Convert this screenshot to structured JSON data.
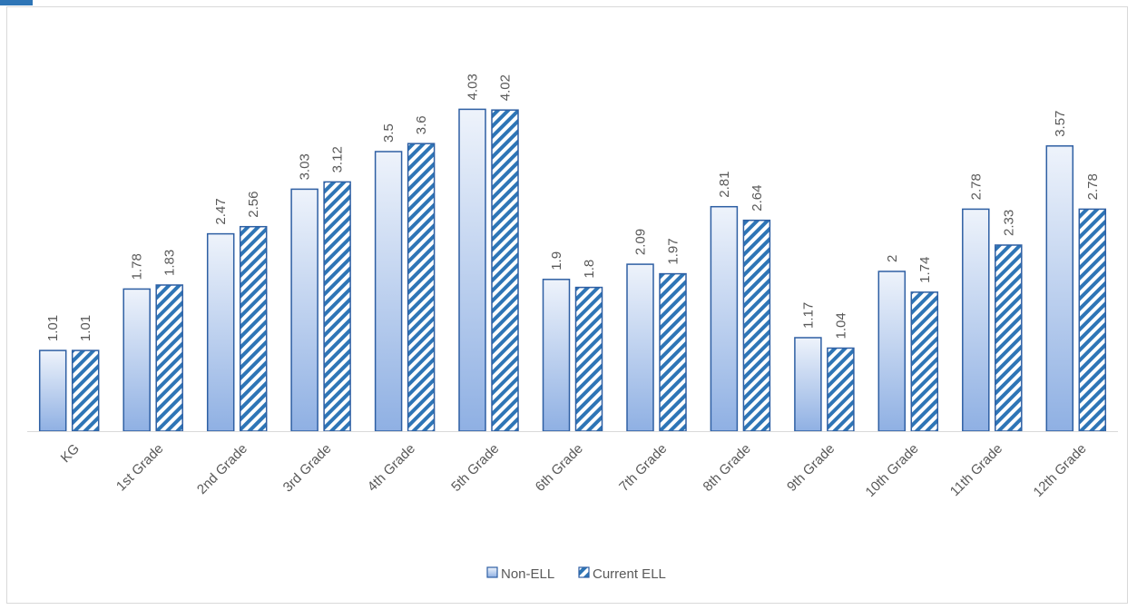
{
  "chart_data": {
    "type": "bar",
    "categories": [
      "KG",
      "1st Grade",
      "2nd Grade",
      "3rd Grade",
      "4th Grade",
      "5th Grade",
      "6th Grade",
      "7th Grade",
      "8th Grade",
      "9th Grade",
      "10th Grade",
      "11th Grade",
      "12th Grade"
    ],
    "series": [
      {
        "name": "Non-ELL",
        "values": [
          1.01,
          1.78,
          2.47,
          3.03,
          3.5,
          4.03,
          1.9,
          2.09,
          2.81,
          1.17,
          2,
          2.78,
          3.57
        ],
        "fill": "gradient-blue",
        "stroke": "#2e5fa3"
      },
      {
        "name": "Current ELL",
        "values": [
          1.01,
          1.83,
          2.56,
          3.12,
          3.6,
          4.02,
          1.8,
          1.97,
          2.64,
          1.04,
          1.74,
          2.33,
          2.78
        ],
        "fill": "hatch-blue",
        "stroke": "#2e5fa3"
      }
    ],
    "ylim": [
      0,
      4.5
    ],
    "grid": false,
    "legend": "bottom-center",
    "title": "",
    "xlabel": "",
    "ylabel": ""
  },
  "colors": {
    "bar_stroke": "#2e5fa3",
    "gradient_top": "#eef3fb",
    "gradient_bottom": "#8fb0e3",
    "hatch": "#2e75b6",
    "label": "#595959",
    "axis": "#d9d9d9"
  }
}
